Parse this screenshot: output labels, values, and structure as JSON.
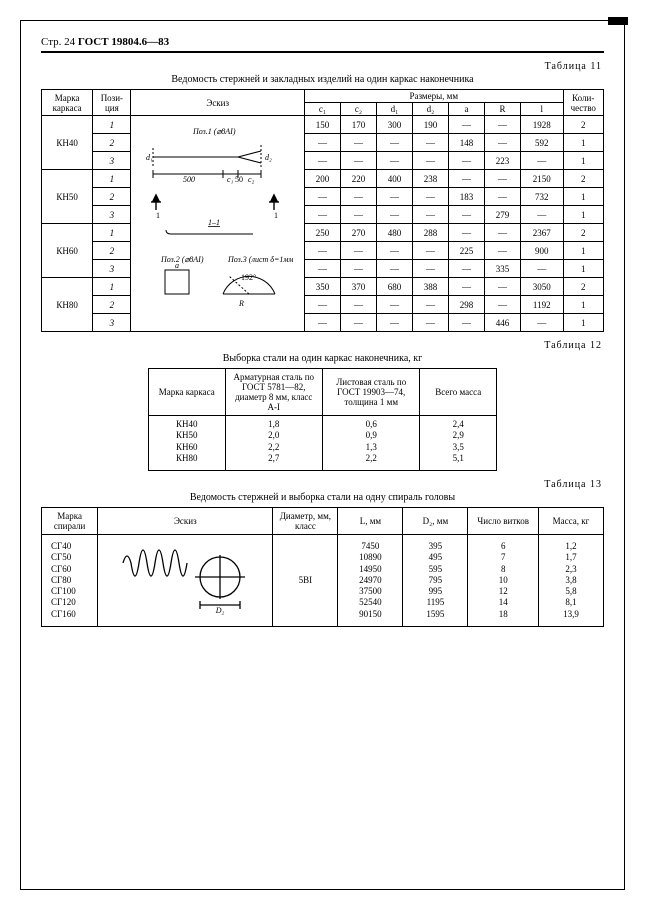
{
  "page_header": {
    "page": "Стр. 24",
    "code": "ГОСТ 19804.6—83"
  },
  "t11": {
    "label": "Таблица 11",
    "caption": "Ведомость стержней и закладных изделий на один каркас наконечника",
    "head": {
      "frame": "Марка каркаса",
      "pos": "Пози-ция",
      "sketch": "Эскиз",
      "dims": "Размеры, мм",
      "qty": "Коли-чество",
      "c1": "c₁",
      "c2": "c₂",
      "d1": "d₁",
      "d2": "d₂",
      "a": "a",
      "R": "R",
      "l": "l"
    },
    "sketch_labels": {
      "p1": "Поз.1 (⌀8AI)",
      "p2": "Поз.2 (⌀8AI)",
      "p3": "Поз.3 (лист δ=1мм)",
      "sec": "1–1",
      "d500": "500",
      "ang": "192°"
    },
    "groups": [
      {
        "frame": "КН40",
        "rows": [
          {
            "p": "1",
            "c1": "150",
            "c2": "170",
            "d1": "300",
            "d2": "190",
            "a": "—",
            "R": "—",
            "l": "1928",
            "q": "2"
          },
          {
            "p": "2",
            "c1": "—",
            "c2": "—",
            "d1": "—",
            "d2": "—",
            "a": "148",
            "R": "—",
            "l": "592",
            "q": "1"
          },
          {
            "p": "3",
            "c1": "—",
            "c2": "—",
            "d1": "—",
            "d2": "—",
            "a": "—",
            "R": "223",
            "l": "—",
            "q": "1"
          }
        ]
      },
      {
        "frame": "КН50",
        "rows": [
          {
            "p": "1",
            "c1": "200",
            "c2": "220",
            "d1": "400",
            "d2": "238",
            "a": "—",
            "R": "—",
            "l": "2150",
            "q": "2"
          },
          {
            "p": "2",
            "c1": "—",
            "c2": "—",
            "d1": "—",
            "d2": "—",
            "a": "183",
            "R": "—",
            "l": "732",
            "q": "1"
          },
          {
            "p": "3",
            "c1": "—",
            "c2": "—",
            "d1": "—",
            "d2": "—",
            "a": "—",
            "R": "279",
            "l": "—",
            "q": "1"
          }
        ]
      },
      {
        "frame": "КН60",
        "rows": [
          {
            "p": "1",
            "c1": "250",
            "c2": "270",
            "d1": "480",
            "d2": "288",
            "a": "—",
            "R": "—",
            "l": "2367",
            "q": "2"
          },
          {
            "p": "2",
            "c1": "—",
            "c2": "—",
            "d1": "—",
            "d2": "—",
            "a": "225",
            "R": "—",
            "l": "900",
            "q": "1"
          },
          {
            "p": "3",
            "c1": "—",
            "c2": "—",
            "d1": "—",
            "d2": "—",
            "a": "—",
            "R": "335",
            "l": "—",
            "q": "1"
          }
        ]
      },
      {
        "frame": "КН80",
        "rows": [
          {
            "p": "1",
            "c1": "350",
            "c2": "370",
            "d1": "680",
            "d2": "388",
            "a": "—",
            "R": "—",
            "l": "3050",
            "q": "2"
          },
          {
            "p": "2",
            "c1": "—",
            "c2": "—",
            "d1": "—",
            "d2": "—",
            "a": "298",
            "R": "—",
            "l": "1192",
            "q": "1"
          },
          {
            "p": "3",
            "c1": "—",
            "c2": "—",
            "d1": "—",
            "d2": "—",
            "a": "—",
            "R": "446",
            "l": "—",
            "q": "1"
          }
        ]
      }
    ]
  },
  "t12": {
    "label": "Таблица 12",
    "caption": "Выборка стали на один каркас наконечника, кг",
    "head": {
      "frame": "Марка каркаса",
      "c1": "Арматурная сталь по ГОСТ 5781—82, диаметр 8 мм, класс A-I",
      "c2": "Листовая сталь по ГОСТ 19903—74, толщина 1 мм",
      "c3": "Всего масса"
    },
    "rows": [
      {
        "f": "КН40",
        "a": "1,8",
        "b": "0,6",
        "t": "2,4"
      },
      {
        "f": "КН50",
        "a": "2,0",
        "b": "0,9",
        "t": "2,9"
      },
      {
        "f": "КН60",
        "a": "2,2",
        "b": "1,3",
        "t": "3,5"
      },
      {
        "f": "КН80",
        "a": "2,7",
        "b": "2,2",
        "t": "5,1"
      }
    ]
  },
  "t13": {
    "label": "Таблица 13",
    "caption": "Ведомость стержней и выборка стали на одну спираль головы",
    "head": {
      "frame": "Марка спирали",
      "sk": "Эскиз",
      "dia": "Диаметр, мм, класс",
      "L": "L, мм",
      "D2": "D₂, мм",
      "n": "Число витков",
      "m": "Масса, кг"
    },
    "dia_val": "5BI",
    "rows": [
      {
        "f": "СГ40",
        "L": "7450",
        "D": "395",
        "n": "6",
        "m": "1,2"
      },
      {
        "f": "СГ50",
        "L": "10890",
        "D": "495",
        "n": "7",
        "m": "1,7"
      },
      {
        "f": "СГ60",
        "L": "14950",
        "D": "595",
        "n": "8",
        "m": "2,3"
      },
      {
        "f": "СГ80",
        "L": "24970",
        "D": "795",
        "n": "10",
        "m": "3,8"
      },
      {
        "f": "СГ100",
        "L": "37500",
        "D": "995",
        "n": "12",
        "m": "5,8"
      },
      {
        "f": "СГ120",
        "L": "52540",
        "D": "1195",
        "n": "14",
        "m": "8,1"
      },
      {
        "f": "СГ160",
        "L": "90150",
        "D": "1595",
        "n": "18",
        "m": "13,9"
      }
    ]
  }
}
